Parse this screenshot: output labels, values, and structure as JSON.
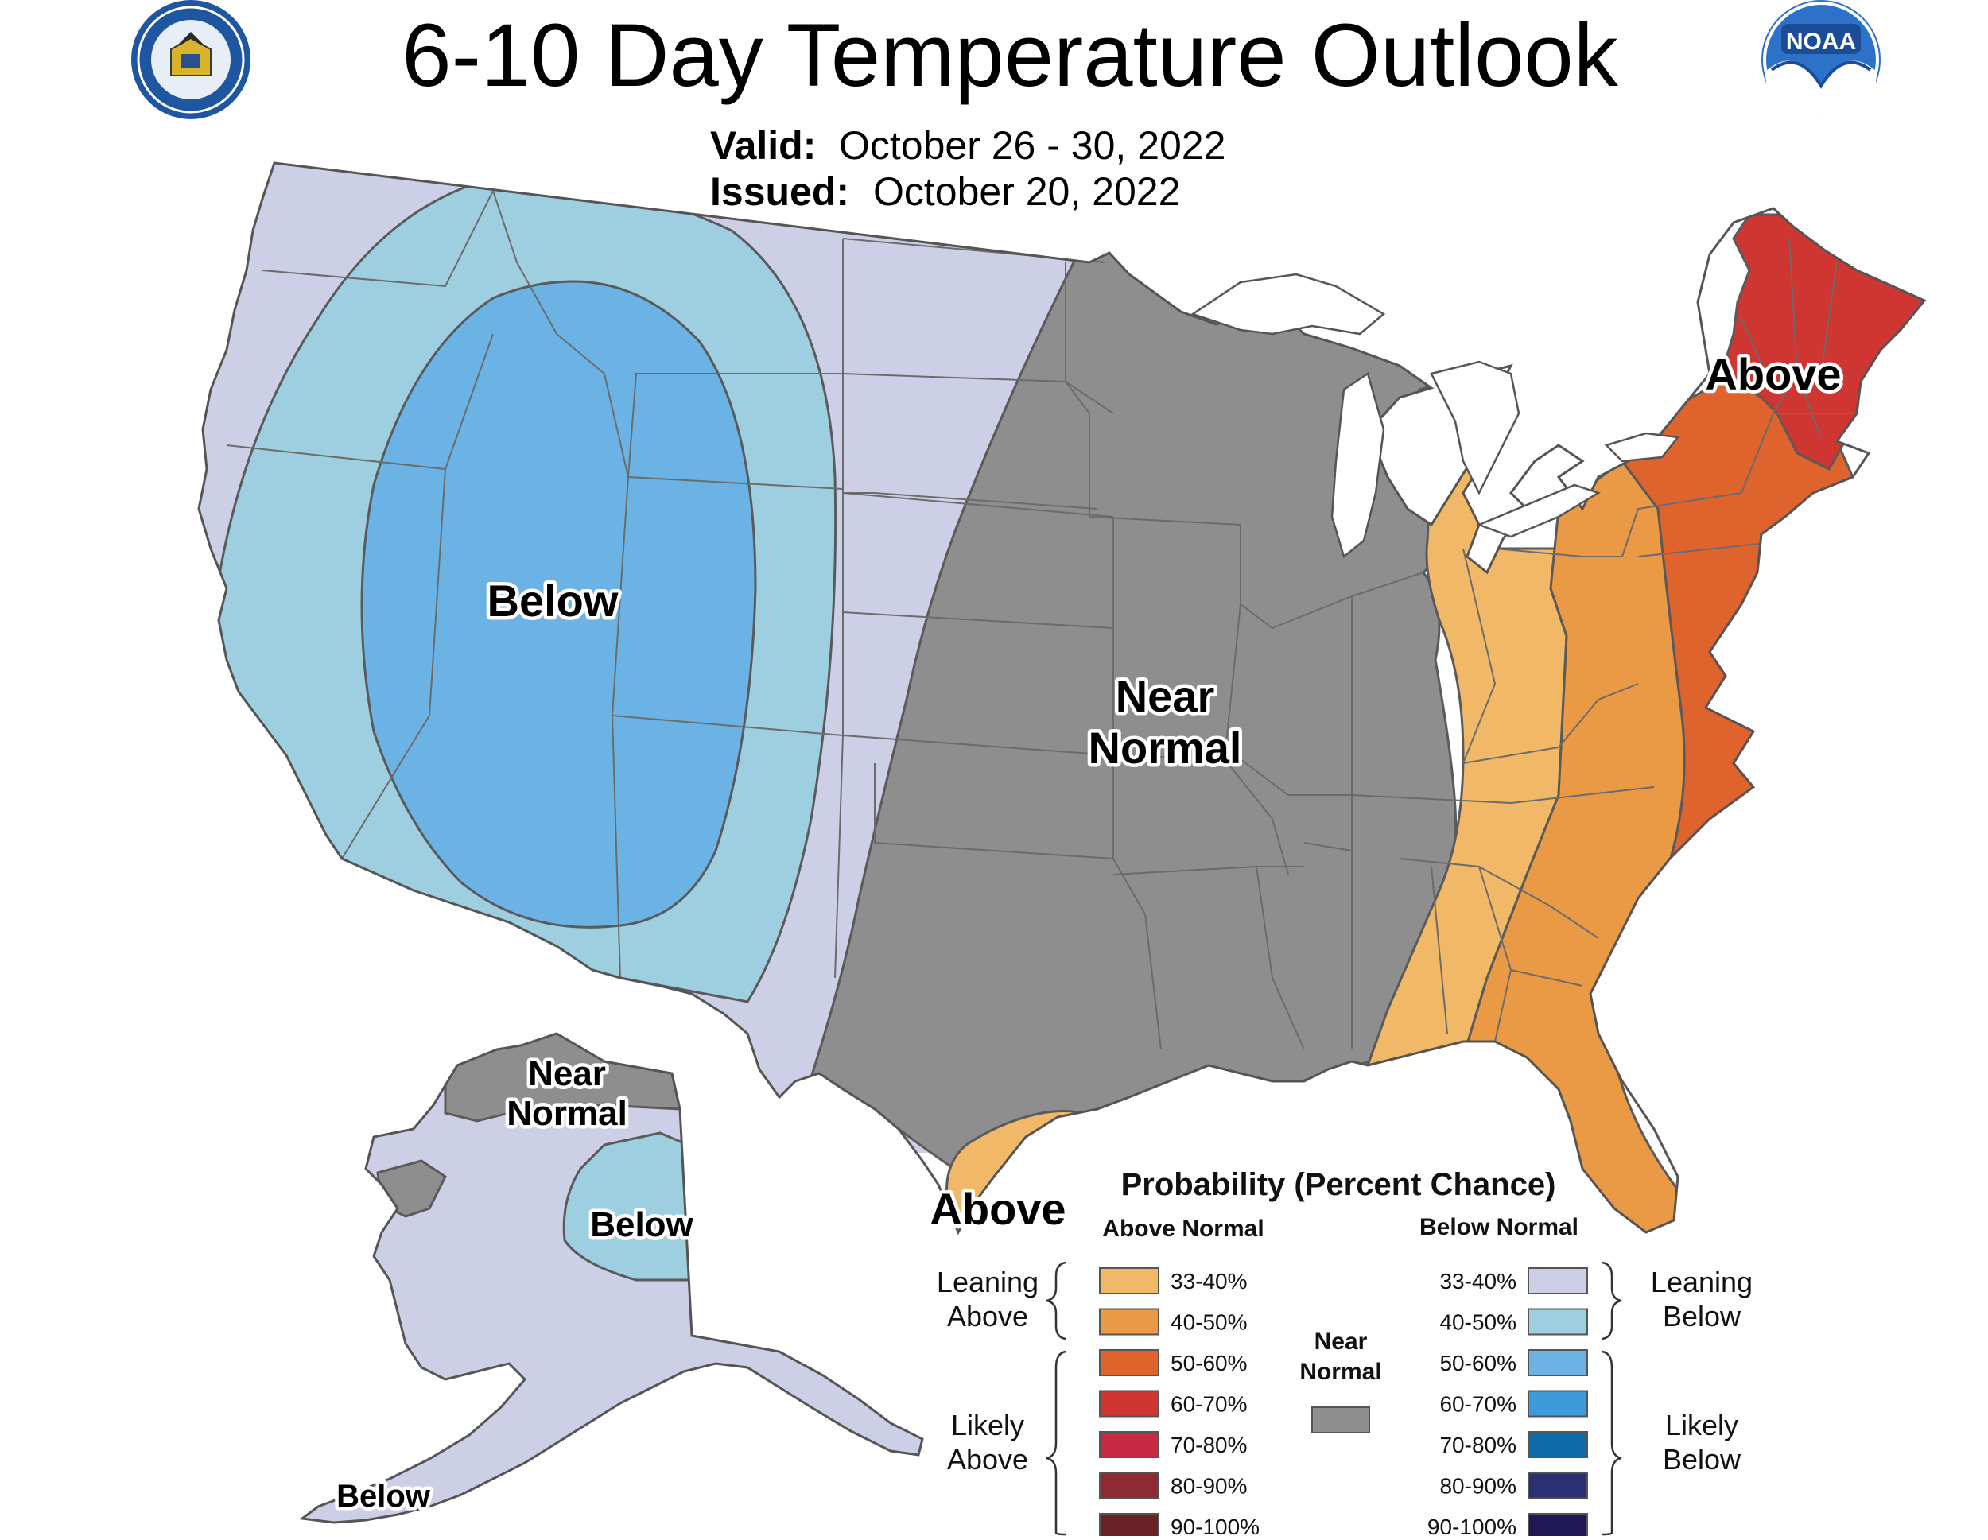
{
  "header": {
    "title": "6-10 Day Temperature Outlook",
    "valid_label": "Valid:",
    "valid_value": "October 26 - 30, 2022",
    "issued_label": "Issued:",
    "issued_value": "October 20, 2022"
  },
  "logos": {
    "left": {
      "icon": "department-of-commerce-seal-icon",
      "text": "DEPARTMENT OF COMMERCE · UNITED STATES OF AMERICA"
    },
    "right": {
      "icon": "noaa-logo-icon",
      "text": "NOAA"
    }
  },
  "map": {
    "labels": {
      "conus_below": "Below",
      "conus_near_1": "Near",
      "conus_near_2": "Normal",
      "conus_above_ne": "Above",
      "conus_above_tx": "Above",
      "ak_near_1": "Near",
      "ak_near_2": "Normal",
      "ak_below": "Below",
      "ak_below_sw": "Below"
    },
    "colors": {
      "below_33_40": "#cdcfe6",
      "below_40_50": "#9dcfe0",
      "below_50_60": "#6ab3e4",
      "near_normal": "#8e8e8e",
      "above_33_40": "#f1b867",
      "above_40_50": "#ea9945",
      "above_50_60": "#de632d",
      "above_60_70": "#cf3531",
      "water": "#ffffff"
    }
  },
  "legend": {
    "title": "Probability (Percent Chance)",
    "above_header": "Above Normal",
    "below_header": "Below Normal",
    "near_1": "Near",
    "near_2": "Normal",
    "near_color": "#8e8e8e",
    "leaning_above_1": "Leaning",
    "leaning_above_2": "Above",
    "likely_above_1": "Likely",
    "likely_above_2": "Above",
    "leaning_below_1": "Leaning",
    "leaning_below_2": "Below",
    "likely_below_1": "Likely",
    "likely_below_2": "Below",
    "above": [
      {
        "label": "33-40%",
        "color": "#f1b867"
      },
      {
        "label": "40-50%",
        "color": "#ea9945"
      },
      {
        "label": "50-60%",
        "color": "#de632d"
      },
      {
        "label": "60-70%",
        "color": "#cf3531"
      },
      {
        "label": "70-80%",
        "color": "#c82a45"
      },
      {
        "label": "80-90%",
        "color": "#8e2a32"
      },
      {
        "label": "90-100%",
        "color": "#6b2227"
      }
    ],
    "below": [
      {
        "label": "33-40%",
        "color": "#cdcfe6"
      },
      {
        "label": "40-50%",
        "color": "#9dcfe0"
      },
      {
        "label": "50-60%",
        "color": "#6ab3e4"
      },
      {
        "label": "60-70%",
        "color": "#3d9bd9"
      },
      {
        "label": "70-80%",
        "color": "#0f6aa8"
      },
      {
        "label": "80-90%",
        "color": "#2b2f74"
      },
      {
        "label": "90-100%",
        "color": "#1e1856"
      }
    ]
  }
}
